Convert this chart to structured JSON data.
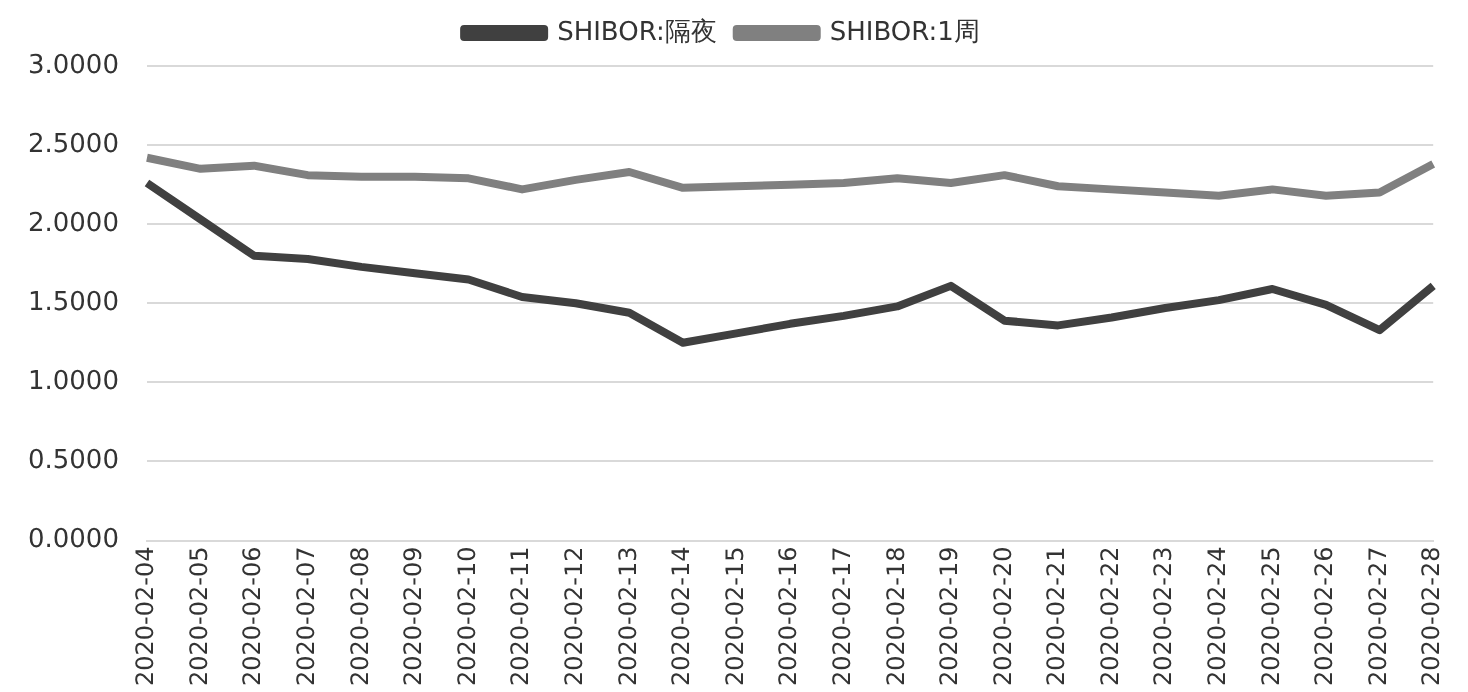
{
  "chart_data": {
    "type": "line",
    "categories": [
      "2020-02-04",
      "2020-02-05",
      "2020-02-06",
      "2020-02-07",
      "2020-02-08",
      "2020-02-09",
      "2020-02-10",
      "2020-02-11",
      "2020-02-12",
      "2020-02-13",
      "2020-02-14",
      "2020-02-15",
      "2020-02-16",
      "2020-02-17",
      "2020-02-18",
      "2020-02-19",
      "2020-02-20",
      "2020-02-21",
      "2020-02-22",
      "2020-02-23",
      "2020-02-24",
      "2020-02-25",
      "2020-02-26",
      "2020-02-27",
      "2020-02-28"
    ],
    "series": [
      {
        "name": "SHIBOR:隔夜",
        "color": "#404040",
        "values": [
          2.26,
          2.03,
          1.8,
          1.78,
          1.73,
          1.69,
          1.65,
          1.54,
          1.5,
          1.44,
          1.25,
          1.31,
          1.37,
          1.42,
          1.48,
          1.61,
          1.39,
          1.36,
          1.41,
          1.47,
          1.52,
          1.59,
          1.49,
          1.33,
          1.61
        ]
      },
      {
        "name": "SHIBOR:1周",
        "color": "#808080",
        "values": [
          2.42,
          2.35,
          2.37,
          2.31,
          2.3,
          2.3,
          2.29,
          2.22,
          2.28,
          2.33,
          2.23,
          2.24,
          2.25,
          2.26,
          2.29,
          2.26,
          2.31,
          2.24,
          2.22,
          2.2,
          2.18,
          2.22,
          2.18,
          2.2,
          2.38
        ]
      }
    ],
    "ylim": [
      0,
      3
    ],
    "yticks": [
      {
        "value": 0,
        "label": "0.0000"
      },
      {
        "value": 0.5,
        "label": "0.5000"
      },
      {
        "value": 1,
        "label": "1.0000"
      },
      {
        "value": 1.5,
        "label": "1.5000"
      },
      {
        "value": 2,
        "label": "2.0000"
      },
      {
        "value": 2.5,
        "label": "2.5000"
      },
      {
        "value": 3,
        "label": "3.0000"
      }
    ],
    "grid": "y",
    "legend": "top",
    "marker": "none",
    "line_style": "solid"
  }
}
